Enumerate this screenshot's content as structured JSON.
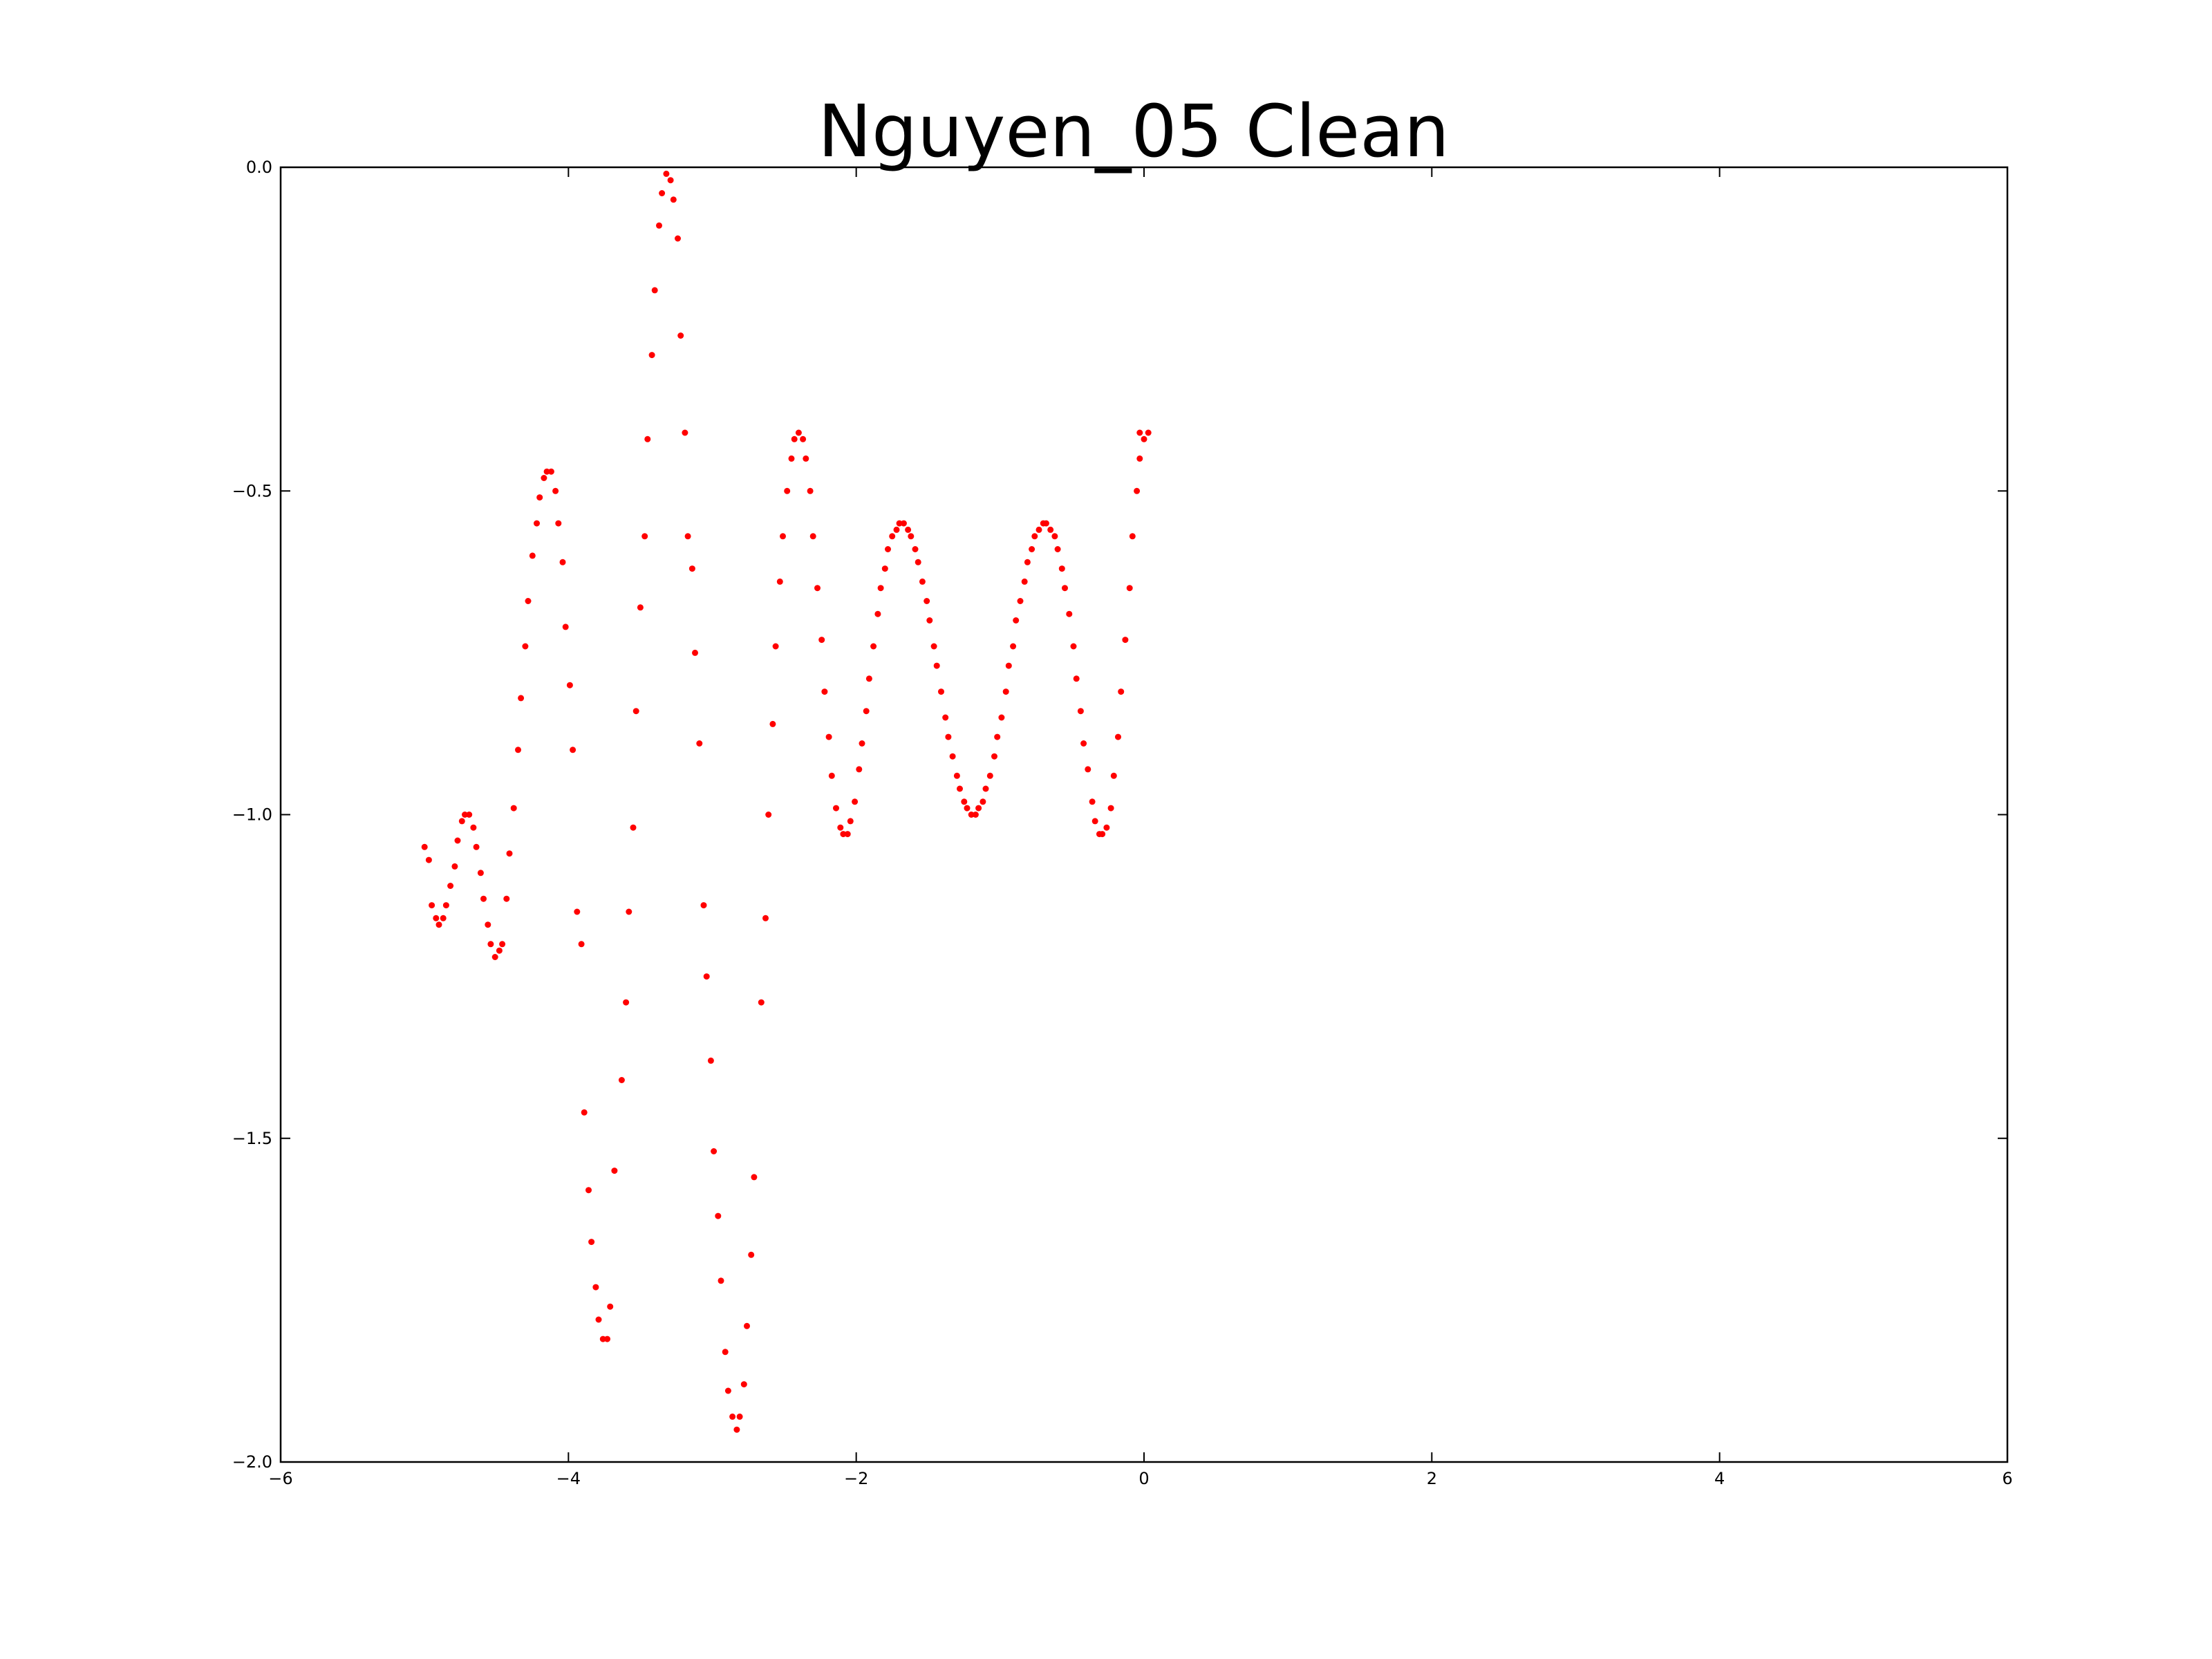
{
  "chart_data": {
    "type": "scatter",
    "title": "Nguyen_05 Clean",
    "xlabel": "",
    "ylabel": "",
    "xlim": [
      -6,
      6
    ],
    "ylim": [
      -2.0,
      0.0
    ],
    "xticks": [
      -6,
      -4,
      -2,
      0,
      2,
      4,
      6
    ],
    "xtick_labels": [
      "−6",
      "−4",
      "−2",
      "0",
      "2",
      "4",
      "6"
    ],
    "yticks": [
      0.0,
      -0.5,
      -1.0,
      -1.5,
      -2.0
    ],
    "ytick_labels": [
      "0.0",
      "−0.5",
      "−1.0",
      "−1.5",
      "−2.0"
    ],
    "grid": false,
    "legend": "none",
    "marker_color": "#ff0000",
    "series": [
      {
        "points": [
          [
            -5.0,
            -1.05
          ],
          [
            -4.97,
            -1.07
          ],
          [
            -4.95,
            -1.14
          ],
          [
            -4.92,
            -1.16
          ],
          [
            -4.9,
            -1.17
          ],
          [
            -4.87,
            -1.16
          ],
          [
            -4.85,
            -1.14
          ],
          [
            -4.82,
            -1.11
          ],
          [
            -4.79,
            -1.08
          ],
          [
            -4.77,
            -1.04
          ],
          [
            -4.74,
            -1.01
          ],
          [
            -4.72,
            -1.0
          ],
          [
            -4.69,
            -1.0
          ],
          [
            -4.66,
            -1.02
          ],
          [
            -4.64,
            -1.05
          ],
          [
            -4.61,
            -1.09
          ],
          [
            -4.59,
            -1.13
          ],
          [
            -4.56,
            -1.17
          ],
          [
            -4.54,
            -1.2
          ],
          [
            -4.51,
            -1.22
          ],
          [
            -4.48,
            -1.21
          ],
          [
            -4.46,
            -1.2
          ],
          [
            -4.43,
            -1.13
          ],
          [
            -4.41,
            -1.06
          ],
          [
            -4.38,
            -0.99
          ],
          [
            -4.35,
            -0.9
          ],
          [
            -4.33,
            -0.82
          ],
          [
            -4.3,
            -0.74
          ],
          [
            -4.28,
            -0.67
          ],
          [
            -4.25,
            -0.6
          ],
          [
            -4.22,
            -0.55
          ],
          [
            -4.2,
            -0.51
          ],
          [
            -4.17,
            -0.48
          ],
          [
            -4.15,
            -0.47
          ],
          [
            -4.12,
            -0.47
          ],
          [
            -4.09,
            -0.5
          ],
          [
            -4.07,
            -0.55
          ],
          [
            -4.04,
            -0.61
          ],
          [
            -4.02,
            -0.71
          ],
          [
            -3.99,
            -0.8
          ],
          [
            -3.97,
            -0.9
          ],
          [
            -3.94,
            -1.15
          ],
          [
            -3.91,
            -1.2
          ],
          [
            -3.89,
            -1.46
          ],
          [
            -3.86,
            -1.58
          ],
          [
            -3.84,
            -1.66
          ],
          [
            -3.81,
            -1.73
          ],
          [
            -3.79,
            -1.78
          ],
          [
            -3.76,
            -1.81
          ],
          [
            -3.73,
            -1.81
          ],
          [
            -3.71,
            -1.76
          ],
          [
            -3.68,
            -1.55
          ],
          [
            -3.63,
            -1.41
          ],
          [
            -3.6,
            -1.29
          ],
          [
            -3.58,
            -1.15
          ],
          [
            -3.55,
            -1.02
          ],
          [
            -3.53,
            -0.84
          ],
          [
            -3.5,
            -0.68
          ],
          [
            -3.47,
            -0.57
          ],
          [
            -3.45,
            -0.42
          ],
          [
            -3.42,
            -0.29
          ],
          [
            -3.4,
            -0.19
          ],
          [
            -3.37,
            -0.09
          ],
          [
            -3.35,
            -0.04
          ],
          [
            -3.32,
            -0.01
          ],
          [
            -3.29,
            -0.02
          ],
          [
            -3.27,
            -0.05
          ],
          [
            -3.24,
            -0.11
          ],
          [
            -3.22,
            -0.26
          ],
          [
            -3.19,
            -0.41
          ],
          [
            -3.17,
            -0.57
          ],
          [
            -3.14,
            -0.62
          ],
          [
            -3.12,
            -0.75
          ],
          [
            -3.09,
            -0.89
          ],
          [
            -3.06,
            -1.14
          ],
          [
            -3.04,
            -1.25
          ],
          [
            -3.01,
            -1.38
          ],
          [
            -2.99,
            -1.52
          ],
          [
            -2.96,
            -1.62
          ],
          [
            -2.94,
            -1.72
          ],
          [
            -2.91,
            -1.83
          ],
          [
            -2.89,
            -1.89
          ],
          [
            -2.86,
            -1.93
          ],
          [
            -2.83,
            -1.95
          ],
          [
            -2.81,
            -1.93
          ],
          [
            -2.78,
            -1.88
          ],
          [
            -2.76,
            -1.79
          ],
          [
            -2.73,
            -1.68
          ],
          [
            -2.71,
            -1.56
          ],
          [
            -2.66,
            -1.29
          ],
          [
            -2.63,
            -1.16
          ],
          [
            -2.61,
            -1.0
          ],
          [
            -2.58,
            -0.86
          ],
          [
            -2.56,
            -0.74
          ],
          [
            -2.53,
            -0.64
          ],
          [
            -2.51,
            -0.57
          ],
          [
            -2.48,
            -0.5
          ],
          [
            -2.45,
            -0.45
          ],
          [
            -2.43,
            -0.42
          ],
          [
            -2.4,
            -0.41
          ],
          [
            -2.37,
            -0.42
          ],
          [
            -2.35,
            -0.45
          ],
          [
            -2.32,
            -0.5
          ],
          [
            -2.3,
            -0.57
          ],
          [
            -2.27,
            -0.65
          ],
          [
            -2.24,
            -0.73
          ],
          [
            -2.22,
            -0.81
          ],
          [
            -2.19,
            -0.88
          ],
          [
            -2.17,
            -0.94
          ],
          [
            -2.14,
            -0.99
          ],
          [
            -2.11,
            -1.02
          ],
          [
            -2.09,
            -1.03
          ],
          [
            -2.06,
            -1.03
          ],
          [
            -2.04,
            -1.01
          ],
          [
            -2.01,
            -0.98
          ],
          [
            -1.98,
            -0.93
          ],
          [
            -1.96,
            -0.89
          ],
          [
            -1.93,
            -0.84
          ],
          [
            -1.91,
            -0.79
          ],
          [
            -1.88,
            -0.74
          ],
          [
            -1.85,
            -0.69
          ],
          [
            -1.83,
            -0.65
          ],
          [
            -1.8,
            -0.62
          ],
          [
            -1.78,
            -0.59
          ],
          [
            -1.75,
            -0.57
          ],
          [
            -1.72,
            -0.56
          ],
          [
            -1.7,
            -0.55
          ],
          [
            -1.67,
            -0.55
          ],
          [
            -1.64,
            -0.56
          ],
          [
            -1.62,
            -0.57
          ],
          [
            -1.59,
            -0.59
          ],
          [
            -1.57,
            -0.61
          ],
          [
            -1.54,
            -0.64
          ],
          [
            -1.51,
            -0.67
          ],
          [
            -1.49,
            -0.7
          ],
          [
            -1.46,
            -0.74
          ],
          [
            -1.44,
            -0.77
          ],
          [
            -1.41,
            -0.81
          ],
          [
            -1.38,
            -0.85
          ],
          [
            -1.36,
            -0.88
          ],
          [
            -1.33,
            -0.91
          ],
          [
            -1.3,
            -0.94
          ],
          [
            -1.28,
            -0.96
          ],
          [
            -1.25,
            -0.98
          ],
          [
            -1.23,
            -0.99
          ],
          [
            -1.2,
            -1.0
          ],
          [
            -1.17,
            -1.0
          ],
          [
            -1.15,
            -0.99
          ],
          [
            -1.12,
            -0.98
          ],
          [
            -1.1,
            -0.96
          ],
          [
            -1.07,
            -0.94
          ],
          [
            -1.04,
            -0.91
          ],
          [
            -1.02,
            -0.88
          ],
          [
            -0.99,
            -0.85
          ],
          [
            -0.96,
            -0.81
          ],
          [
            -0.94,
            -0.77
          ],
          [
            -0.91,
            -0.74
          ],
          [
            -0.89,
            -0.7
          ],
          [
            -0.86,
            -0.67
          ],
          [
            -0.83,
            -0.64
          ],
          [
            -0.81,
            -0.61
          ],
          [
            -0.78,
            -0.59
          ],
          [
            -0.76,
            -0.57
          ],
          [
            -0.73,
            -0.56
          ],
          [
            -0.7,
            -0.55
          ],
          [
            -0.68,
            -0.55
          ],
          [
            -0.65,
            -0.56
          ],
          [
            -0.62,
            -0.57
          ],
          [
            -0.6,
            -0.59
          ],
          [
            -0.57,
            -0.62
          ],
          [
            -0.55,
            -0.65
          ],
          [
            -0.52,
            -0.69
          ],
          [
            -0.49,
            -0.74
          ],
          [
            -0.47,
            -0.79
          ],
          [
            -0.44,
            -0.84
          ],
          [
            -0.42,
            -0.89
          ],
          [
            -0.39,
            -0.93
          ],
          [
            -0.36,
            -0.98
          ],
          [
            -0.34,
            -1.01
          ],
          [
            -0.31,
            -1.03
          ],
          [
            -0.29,
            -1.03
          ],
          [
            -0.26,
            -1.02
          ],
          [
            -0.23,
            -0.99
          ],
          [
            -0.21,
            -0.94
          ],
          [
            -0.18,
            -0.88
          ],
          [
            -0.16,
            -0.81
          ],
          [
            -0.13,
            -0.73
          ],
          [
            -0.1,
            -0.65
          ],
          [
            -0.08,
            -0.57
          ],
          [
            -0.05,
            -0.5
          ],
          [
            -0.03,
            -0.45
          ],
          [
            0.0,
            -0.42
          ],
          [
            0.03,
            -0.41
          ]
        ]
      }
    ]
  }
}
